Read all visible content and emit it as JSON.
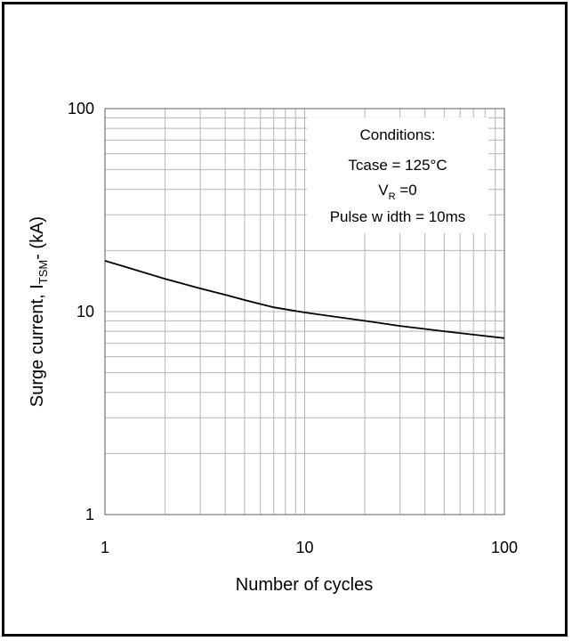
{
  "chart_data": {
    "type": "line",
    "xscale": "log",
    "yscale": "log",
    "xlim": [
      1,
      100
    ],
    "ylim": [
      1,
      100
    ],
    "xlabel": "Number of cycles",
    "ylabel": "Surge current, ITSM- (kA)",
    "ylabel_parts": {
      "main": "Surge current, I",
      "sub": "TSM",
      "tail": "- (kA)"
    },
    "x_ticks": [
      1,
      10,
      100
    ],
    "y_ticks": [
      1,
      10,
      100
    ],
    "x_tick_labels": [
      "1",
      "10",
      "100"
    ],
    "y_tick_labels": [
      "1",
      "10",
      "100"
    ],
    "grid": true,
    "series": [
      {
        "x": [
          1,
          2,
          3,
          4,
          5,
          7,
          10,
          20,
          30,
          50,
          70,
          100
        ],
        "y": [
          17.8,
          14.5,
          13.0,
          12.1,
          11.4,
          10.5,
          9.9,
          9.0,
          8.5,
          8.0,
          7.7,
          7.4
        ]
      }
    ],
    "annotations": {
      "conditions_title": "Conditions:",
      "tcase": "Tcase = 125°C",
      "vr_main": "V",
      "vr_sub": "R",
      "vr_tail": " =0",
      "pulse_width": "Pulse w idth = 10ms"
    }
  }
}
